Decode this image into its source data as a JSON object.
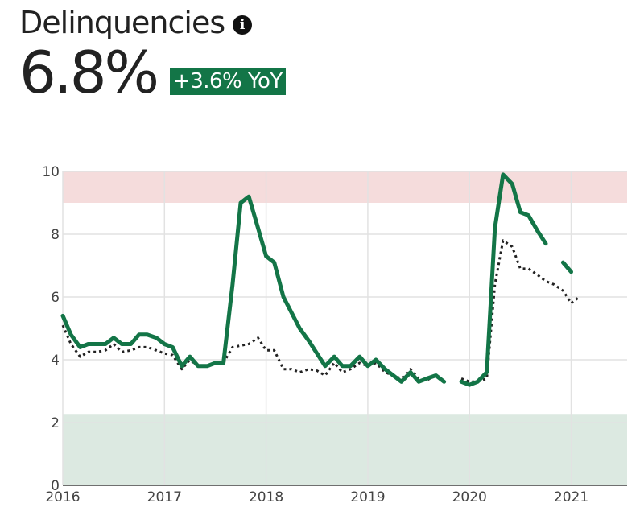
{
  "header": {
    "title": "Delinquencies",
    "value": "6.8%",
    "badge": "+3.6% YoY",
    "info_icon": "info-icon"
  },
  "colors": {
    "primary_line": "#137547",
    "comparison_line": "#222222",
    "badge_bg": "#137547",
    "danger_band": "#f5dcdc",
    "safe_band": "#dce9e1",
    "grid": "#e2e2e2"
  },
  "chart_data": {
    "type": "line",
    "title": "Delinquencies",
    "xlabel": "",
    "ylabel": "",
    "xlim": [
      2016,
      2021.55
    ],
    "ylim": [
      0,
      10
    ],
    "grid": true,
    "x_ticks": [
      "2016",
      "2017",
      "2018",
      "2019",
      "2020",
      "2021"
    ],
    "y_ticks": [
      "0",
      "2",
      "4",
      "6",
      "8",
      "10"
    ],
    "bands": [
      {
        "from": 9,
        "to": 10,
        "meaning": "danger"
      },
      {
        "from": 0,
        "to": 2.25,
        "meaning": "safe"
      }
    ],
    "series": [
      {
        "style": "solid",
        "color": "#137547",
        "segments": [
          [
            [
              2016.0,
              5.4
            ],
            [
              2016.08,
              4.8
            ],
            [
              2016.17,
              4.4
            ],
            [
              2016.25,
              4.5
            ],
            [
              2016.33,
              4.5
            ],
            [
              2016.42,
              4.5
            ],
            [
              2016.5,
              4.7
            ],
            [
              2016.58,
              4.5
            ],
            [
              2016.67,
              4.5
            ],
            [
              2016.75,
              4.8
            ],
            [
              2016.83,
              4.8
            ],
            [
              2016.92,
              4.7
            ],
            [
              2017.0,
              4.5
            ],
            [
              2017.08,
              4.4
            ],
            [
              2017.17,
              3.8
            ],
            [
              2017.25,
              4.1
            ],
            [
              2017.33,
              3.8
            ],
            [
              2017.42,
              3.8
            ],
            [
              2017.5,
              3.9
            ],
            [
              2017.58,
              3.9
            ],
            [
              2017.67,
              6.4
            ],
            [
              2017.75,
              9.0
            ],
            [
              2017.83,
              9.2
            ],
            [
              2017.92,
              8.2
            ],
            [
              2018.0,
              7.3
            ],
            [
              2018.08,
              7.1
            ],
            [
              2018.17,
              6.0
            ],
            [
              2018.25,
              5.5
            ],
            [
              2018.33,
              5.0
            ],
            [
              2018.42,
              4.6
            ],
            [
              2018.5,
              4.2
            ],
            [
              2018.58,
              3.8
            ],
            [
              2018.67,
              4.1
            ],
            [
              2018.75,
              3.8
            ],
            [
              2018.83,
              3.8
            ],
            [
              2018.92,
              4.1
            ],
            [
              2019.0,
              3.8
            ],
            [
              2019.08,
              4.0
            ],
            [
              2019.17,
              3.7
            ],
            [
              2019.25,
              3.5
            ],
            [
              2019.33,
              3.3
            ],
            [
              2019.42,
              3.6
            ],
            [
              2019.5,
              3.3
            ],
            [
              2019.58,
              3.4
            ],
            [
              2019.67,
              3.5
            ],
            [
              2019.75,
              3.3
            ]
          ],
          [
            [
              2019.92,
              3.3
            ],
            [
              2020.0,
              3.2
            ],
            [
              2020.08,
              3.3
            ],
            [
              2020.17,
              3.6
            ],
            [
              2020.25,
              8.2
            ],
            [
              2020.33,
              9.9
            ],
            [
              2020.42,
              9.6
            ],
            [
              2020.5,
              8.7
            ],
            [
              2020.58,
              8.6
            ],
            [
              2020.67,
              8.1
            ],
            [
              2020.75,
              7.7
            ]
          ],
          [
            [
              2020.92,
              7.1
            ],
            [
              2021.0,
              6.8
            ]
          ]
        ]
      },
      {
        "style": "dotted",
        "color": "#222222",
        "segments": [
          [
            [
              2016.0,
              5.1
            ],
            [
              2016.08,
              4.5
            ],
            [
              2016.17,
              4.1
            ],
            [
              2016.25,
              4.25
            ],
            [
              2016.33,
              4.25
            ],
            [
              2016.42,
              4.3
            ],
            [
              2016.5,
              4.5
            ],
            [
              2016.58,
              4.25
            ],
            [
              2016.67,
              4.3
            ],
            [
              2016.75,
              4.4
            ],
            [
              2016.83,
              4.4
            ],
            [
              2016.92,
              4.3
            ],
            [
              2017.0,
              4.2
            ],
            [
              2017.08,
              4.15
            ],
            [
              2017.17,
              3.7
            ],
            [
              2017.25,
              4.0
            ],
            [
              2017.33,
              3.8
            ],
            [
              2017.42,
              3.8
            ],
            [
              2017.5,
              3.9
            ],
            [
              2017.58,
              3.9
            ],
            [
              2017.67,
              4.4
            ],
            [
              2017.75,
              4.45
            ],
            [
              2017.83,
              4.5
            ],
            [
              2017.92,
              4.7
            ],
            [
              2018.0,
              4.3
            ],
            [
              2018.08,
              4.3
            ],
            [
              2018.17,
              3.7
            ],
            [
              2018.25,
              3.7
            ],
            [
              2018.33,
              3.6
            ],
            [
              2018.42,
              3.7
            ],
            [
              2018.5,
              3.65
            ],
            [
              2018.58,
              3.5
            ],
            [
              2018.67,
              3.9
            ],
            [
              2018.75,
              3.6
            ],
            [
              2018.83,
              3.7
            ],
            [
              2018.92,
              3.9
            ],
            [
              2019.0,
              3.8
            ],
            [
              2019.08,
              3.9
            ],
            [
              2019.17,
              3.6
            ],
            [
              2019.25,
              3.5
            ],
            [
              2019.33,
              3.4
            ],
            [
              2019.42,
              3.7
            ],
            [
              2019.5,
              3.4
            ],
            [
              2019.58,
              3.35
            ],
            [
              2019.67,
              3.5
            ],
            [
              2019.75,
              3.3
            ]
          ],
          [
            [
              2019.92,
              3.4
            ],
            [
              2020.0,
              3.3
            ],
            [
              2020.08,
              3.3
            ],
            [
              2020.17,
              3.4
            ],
            [
              2020.25,
              6.4
            ],
            [
              2020.33,
              7.8
            ],
            [
              2020.42,
              7.6
            ],
            [
              2020.5,
              6.9
            ],
            [
              2020.58,
              6.9
            ],
            [
              2020.67,
              6.7
            ],
            [
              2020.75,
              6.5
            ],
            [
              2020.83,
              6.4
            ],
            [
              2020.92,
              6.2
            ],
            [
              2021.0,
              5.8
            ],
            [
              2021.08,
              6.0
            ]
          ]
        ]
      }
    ]
  }
}
